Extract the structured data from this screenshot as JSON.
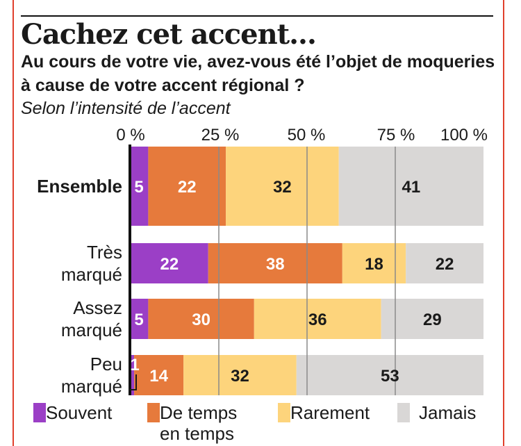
{
  "chart_data": {
    "type": "bar",
    "orientation": "horizontal",
    "stacked": true,
    "title": "Cachez cet accent...",
    "subtitle": "Au cours de votre vie, avez-vous été l’objet de moqueries à cause de votre accent régional ?",
    "note": "Selon l’intensité de l’accent",
    "xlim": [
      0,
      100
    ],
    "ticks": [
      "0 %",
      "25 %",
      "50 %",
      "75 %",
      "100 %"
    ],
    "grid": true,
    "legend_position": "bottom",
    "categories": [
      "Ensemble",
      "Très marqué",
      "Assez marqué",
      "Peu marqué"
    ],
    "category_lines": [
      [
        "Ensemble"
      ],
      [
        "Très",
        "marqué"
      ],
      [
        "Assez",
        "marqué"
      ],
      [
        "Peu",
        "marqué"
      ]
    ],
    "series": [
      {
        "name": "Souvent",
        "color": "#9b3fc6",
        "label_color": "#ffffff",
        "values": [
          5,
          22,
          5,
          1
        ]
      },
      {
        "name": "De temps en temps",
        "legend_lines": [
          "De temps",
          "en temps"
        ],
        "color": "#e67a3c",
        "label_color": "#ffffff",
        "values": [
          22,
          38,
          30,
          14
        ]
      },
      {
        "name": "Rarement",
        "color": "#fdd47c",
        "label_color": "#1a1a1a",
        "values": [
          32,
          18,
          36,
          32
        ]
      },
      {
        "name": "Jamais",
        "color": "#d9d7d6",
        "label_color": "#1a1a1a",
        "values": [
          41,
          22,
          29,
          53
        ]
      }
    ]
  }
}
